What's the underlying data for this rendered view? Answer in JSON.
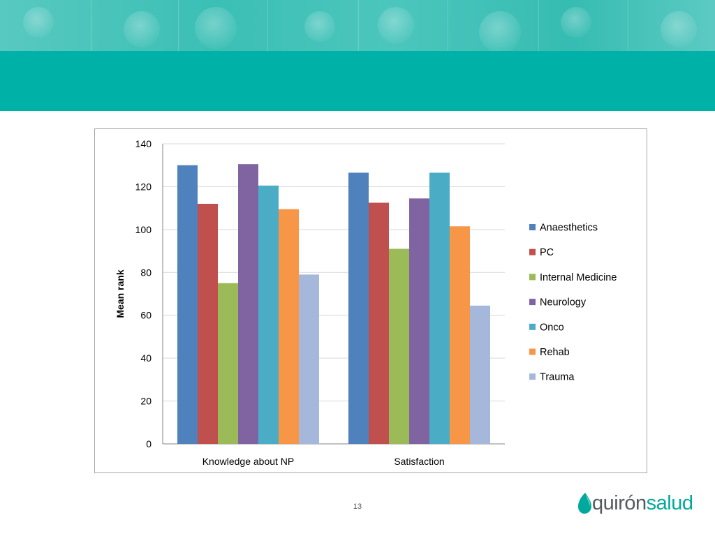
{
  "page": {
    "number": "13",
    "logo": {
      "part1": "quirón",
      "part2": "salud"
    },
    "colors": {
      "banner": "#00b1a7",
      "banner_photos": "#4cc6bd",
      "logo_teal": "#00a99d",
      "logo_gray": "#555a5e"
    }
  },
  "chart_data": {
    "type": "bar",
    "title": "",
    "xlabel": "",
    "ylabel": "Mean rank",
    "ylim": [
      0,
      140
    ],
    "yticks": [
      0,
      20,
      40,
      60,
      80,
      100,
      120,
      140
    ],
    "grid": true,
    "legend_position": "right",
    "categories": [
      "Knowledge about NP",
      "Satisfaction"
    ],
    "series": [
      {
        "name": "Anaesthetics",
        "color": "#4f81bd",
        "values": [
          130,
          126.5
        ]
      },
      {
        "name": "PC",
        "color": "#c0504d",
        "values": [
          112,
          112.5
        ]
      },
      {
        "name": "Internal Medicine",
        "color": "#9bbb59",
        "values": [
          75,
          91
        ]
      },
      {
        "name": "Neurology",
        "color": "#8064a2",
        "values": [
          130.5,
          114.5
        ]
      },
      {
        "name": "Onco",
        "color": "#4bacc6",
        "values": [
          120.5,
          126.5
        ]
      },
      {
        "name": "Rehab",
        "color": "#f79646",
        "values": [
          109.5,
          101.5
        ]
      },
      {
        "name": "Trauma",
        "color": "#a5b8dc",
        "values": [
          79,
          64.5
        ]
      }
    ]
  }
}
